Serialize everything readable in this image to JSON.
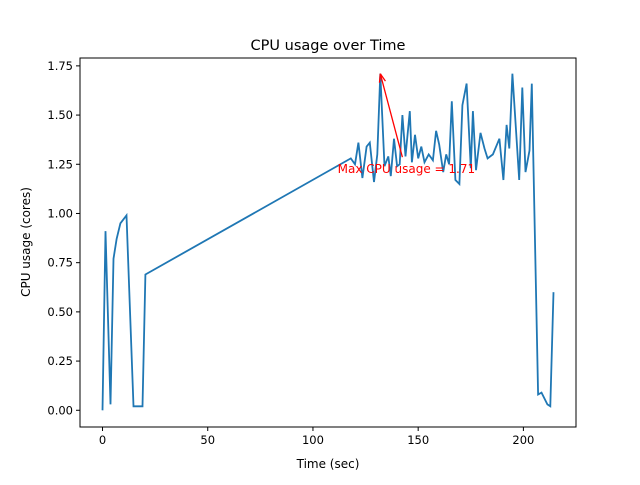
{
  "chart_data": {
    "type": "line",
    "title": "CPU usage over Time",
    "xlabel": "Time (sec)",
    "ylabel": "CPU usage (cores)",
    "xlim": [
      -10.7,
      225
    ],
    "ylim": [
      -0.085,
      1.79
    ],
    "xticks": [
      0,
      50,
      100,
      150,
      200
    ],
    "xtick_labels": [
      "0",
      "50",
      "100",
      "150",
      "200"
    ],
    "yticks": [
      0,
      0.25,
      0.5,
      0.75,
      1.0,
      1.25,
      1.5,
      1.75
    ],
    "ytick_labels": [
      "0.00",
      "0.25",
      "0.50",
      "0.75",
      "1.00",
      "1.25",
      "1.50",
      "1.75"
    ],
    "grid": false,
    "line_color": "#1f77b4",
    "series": [
      {
        "name": "CPU usage",
        "x": [
          0,
          1.4,
          3.8,
          5.2,
          6.7,
          8.5,
          11.4,
          14.7,
          19,
          20.4,
          118,
          120,
          121.6,
          123.5,
          125.5,
          127,
          129,
          130.6,
          132,
          134,
          135.8,
          137,
          138.5,
          140,
          141.2,
          142.5,
          144,
          146,
          147,
          148.5,
          150,
          151.5,
          153,
          155,
          157,
          158.5,
          160,
          161.9,
          163.3,
          164.7,
          166,
          167.7,
          169.6,
          171,
          173,
          175,
          176,
          177.5,
          179.6,
          181.5,
          183,
          185.5,
          188.6,
          190.5,
          192,
          193.3,
          194.8,
          198,
          199.5,
          201,
          202.9,
          204,
          207,
          208.6,
          211.4,
          212.8,
          214.3
        ],
        "y": [
          0,
          0.91,
          0.03,
          0.77,
          0.87,
          0.95,
          0.99,
          0.02,
          0.02,
          0.69,
          1.28,
          1.25,
          1.36,
          1.18,
          1.34,
          1.36,
          1.16,
          1.3,
          1.71,
          1.24,
          1.29,
          1.19,
          1.38,
          1.24,
          1.25,
          1.5,
          1.29,
          1.52,
          1.26,
          1.4,
          1.28,
          1.34,
          1.26,
          1.3,
          1.27,
          1.42,
          1.35,
          1.21,
          1.3,
          1.25,
          1.57,
          1.17,
          1.15,
          1.55,
          1.66,
          1.23,
          1.52,
          1.22,
          1.41,
          1.33,
          1.28,
          1.3,
          1.38,
          1.17,
          1.45,
          1.33,
          1.71,
          1.17,
          1.64,
          1.21,
          1.32,
          1.66,
          0.08,
          0.09,
          0.03,
          0.02,
          0.6
        ]
      }
    ],
    "annotation": {
      "text": "Max CPU usage = 1.71",
      "xy": [
        132,
        1.71
      ],
      "xytext": [
        144.4,
        1.23
      ],
      "color": "#ff0000"
    }
  }
}
